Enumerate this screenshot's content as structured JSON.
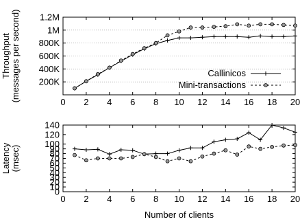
{
  "chart_data": [
    {
      "type": "line",
      "ylabel": [
        "Throughput",
        "(messages per second)"
      ],
      "xlim": [
        0,
        20
      ],
      "ylim": [
        0,
        1200000
      ],
      "x_ticks": [
        "0",
        "2",
        "4",
        "6",
        "8",
        "10",
        "12",
        "14",
        "16",
        "18",
        "20"
      ],
      "y_ticks": [
        "200K",
        "400K",
        "600K",
        "800K",
        "1M",
        "1.2M"
      ],
      "x": [
        1,
        2,
        3,
        4,
        5,
        6,
        7,
        8,
        9,
        10,
        11,
        12,
        13,
        14,
        15,
        16,
        17,
        18,
        19,
        20
      ],
      "series": [
        {
          "name": "Callinicos",
          "color": "#000000",
          "marker": "plus",
          "values": [
            100000,
            210000,
            310000,
            420000,
            520000,
            620000,
            710000,
            790000,
            840000,
            880000,
            880000,
            890000,
            900000,
            900000,
            900000,
            890000,
            910000,
            900000,
            900000,
            910000
          ]
        },
        {
          "name": "Mini-transactions",
          "color": "#000000",
          "marker": "circle",
          "dashed": true,
          "values": [
            100000,
            210000,
            320000,
            420000,
            530000,
            630000,
            720000,
            800000,
            920000,
            980000,
            1040000,
            1040000,
            1050000,
            1060000,
            1090000,
            1070000,
            1090000,
            1090000,
            1080000,
            1070000
          ]
        }
      ],
      "legend": "inside-bottom-right"
    },
    {
      "type": "line",
      "xlabel": "Number of clients",
      "ylabel": [
        "Latency",
        "(msec)"
      ],
      "xlim": [
        0,
        20
      ],
      "ylim": [
        0,
        140
      ],
      "x_ticks": [
        "0",
        "2",
        "4",
        "6",
        "8",
        "10",
        "12",
        "14",
        "16",
        "18",
        "20"
      ],
      "y_ticks": [
        "0",
        "10",
        "20",
        "30",
        "40",
        "50",
        "60",
        "70",
        "80",
        "90",
        "100",
        "120",
        "140"
      ],
      "x": [
        1,
        2,
        3,
        4,
        5,
        6,
        7,
        8,
        9,
        10,
        11,
        12,
        13,
        14,
        15,
        16,
        17,
        18,
        19,
        20
      ],
      "series": [
        {
          "name": "Callinicos",
          "color": "#000000",
          "marker": "plus",
          "values": [
            90,
            88,
            89,
            79,
            88,
            87,
            79,
            80,
            80,
            87,
            92,
            92,
            105,
            109,
            111,
            124,
            109,
            140,
            134,
            125
          ]
        },
        {
          "name": "Mini-transactions",
          "color": "#000000",
          "marker": "circle",
          "dashed": true,
          "values": [
            77,
            66,
            70,
            70,
            70,
            73,
            79,
            73,
            64,
            70,
            64,
            74,
            80,
            87,
            78,
            95,
            90,
            94,
            97,
            98
          ]
        }
      ]
    }
  ]
}
